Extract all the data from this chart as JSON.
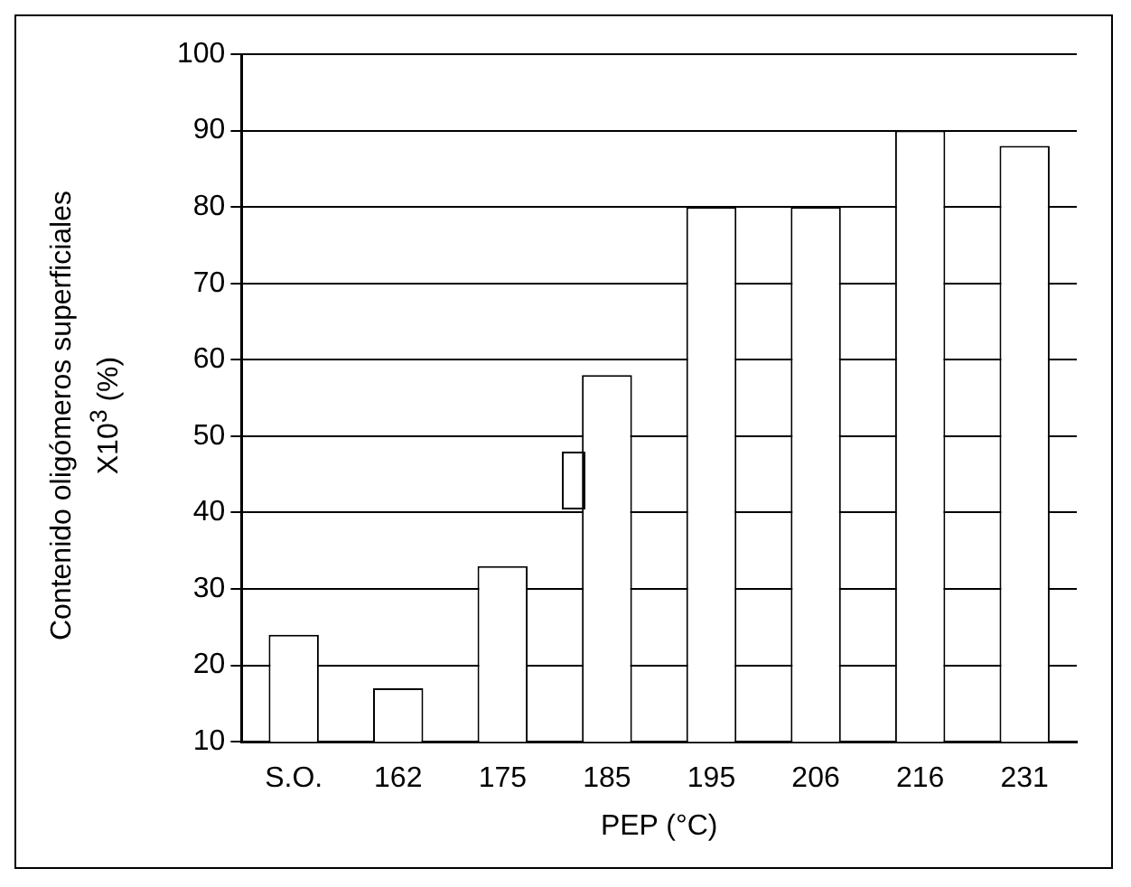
{
  "chart_data": {
    "type": "bar",
    "xlabel": "PEP (°C)",
    "ylabel": "Contenido oligómeros superficiales\nX10$^{3}$ (%)",
    "categories": [
      "S.O.",
      "162",
      "175",
      "185",
      "195",
      "206",
      "216",
      "231"
    ],
    "values": [
      24,
      17,
      33,
      58,
      80,
      80,
      90,
      88
    ],
    "color": "#ffffff",
    "ylim": [
      10,
      100
    ],
    "yticks": [
      10,
      20,
      30,
      40,
      50,
      60,
      70,
      80,
      90,
      100
    ],
    "grid": "y"
  }
}
